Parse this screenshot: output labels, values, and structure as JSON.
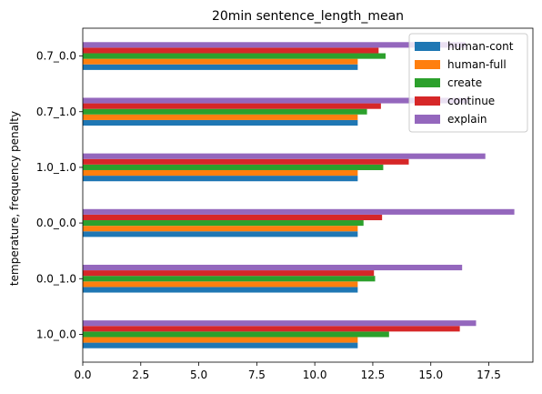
{
  "chart_data": {
    "type": "bar",
    "orientation": "horizontal",
    "title": "20min sentence_length_mean",
    "xlabel": "",
    "ylabel": "temperature, frequency penalty",
    "categories": [
      "1.0_0.0",
      "0.0_1.0",
      "0.0_0.0",
      "1.0_1.0",
      "0.7_1.0",
      "0.7_0.0"
    ],
    "xlim": [
      0,
      19.4
    ],
    "xticks": [
      0.0,
      2.5,
      5.0,
      7.5,
      10.0,
      12.5,
      15.0,
      17.5
    ],
    "xtick_labels": [
      "0.0",
      "2.5",
      "5.0",
      "7.5",
      "10.0",
      "12.5",
      "15.0",
      "17.5"
    ],
    "grid": false,
    "legend_position": "top-right",
    "series": [
      {
        "name": "human-cont",
        "color": "#1f77b4",
        "values": [
          11.85,
          11.85,
          11.85,
          11.85,
          11.85,
          11.85
        ]
      },
      {
        "name": "human-full",
        "color": "#ff7f0e",
        "values": [
          11.85,
          11.85,
          11.85,
          11.85,
          11.85,
          11.85
        ]
      },
      {
        "name": "create",
        "color": "#2ca02c",
        "values": [
          13.2,
          12.6,
          12.1,
          12.95,
          12.25,
          13.05
        ]
      },
      {
        "name": "continue",
        "color": "#d62728",
        "values": [
          16.25,
          12.55,
          12.9,
          14.05,
          12.85,
          12.75
        ]
      },
      {
        "name": "explain",
        "color": "#9467bd",
        "values": [
          16.95,
          16.35,
          18.6,
          17.35,
          16.6,
          16.5
        ]
      }
    ]
  }
}
